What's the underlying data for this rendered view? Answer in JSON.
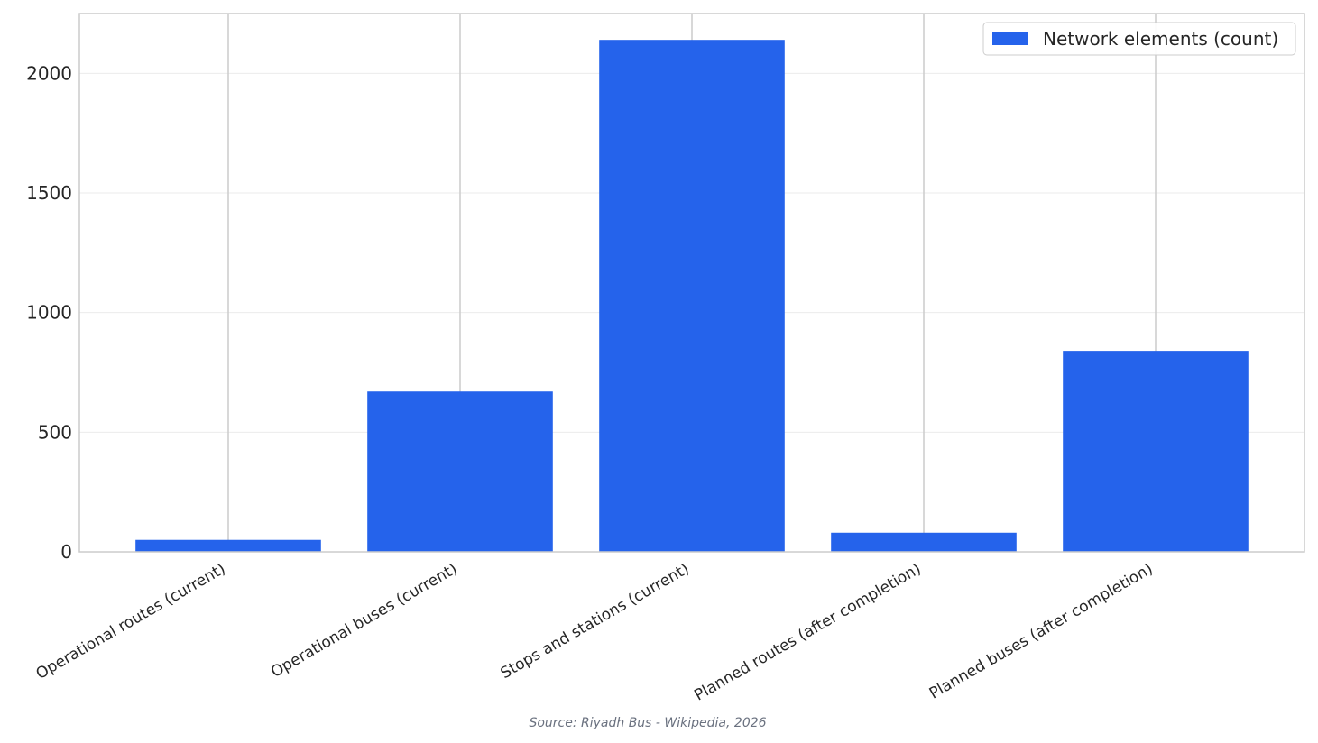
{
  "chart_data": {
    "type": "bar",
    "categories": [
      "Operational routes (current)",
      "Operational buses (current)",
      "Stops and stations (current)",
      "Planned routes (after completion)",
      "Planned buses (after completion)"
    ],
    "series": [
      {
        "name": "Network elements (count)",
        "color": "#2563eb",
        "values": [
          50,
          670,
          2140,
          80,
          840
        ]
      }
    ],
    "ylim": [
      0,
      2250
    ],
    "yticks": [
      0,
      500,
      1000,
      1500,
      2000
    ],
    "grid": true,
    "legend": "upper right",
    "source": "Source: Riyadh Bus - Wikipedia, 2026"
  }
}
